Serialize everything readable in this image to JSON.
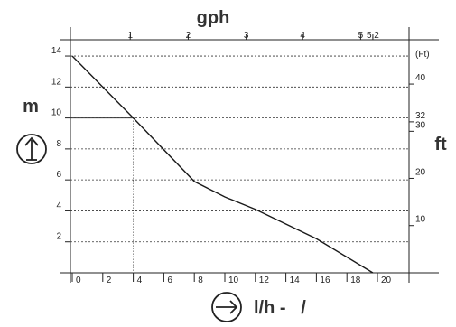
{
  "chart_data": {
    "type": "line",
    "title": "",
    "top_axis_label": "gph",
    "top_ticks": [
      "1",
      "2",
      "3",
      "4",
      "5",
      "5.2"
    ],
    "top_tick_values_lh": [
      3.8,
      7.6,
      11.4,
      15.1,
      18.9,
      19.7
    ],
    "x_label": "l/h -   /",
    "x_ticks": [
      0,
      2,
      4,
      6,
      8,
      10,
      12,
      14,
      16,
      18,
      20
    ],
    "xlim": [
      0,
      22
    ],
    "y_label_left": "m",
    "y_ticks_left": [
      2,
      4,
      6,
      8,
      10,
      12,
      14
    ],
    "ylim": [
      0,
      14
    ],
    "y_label_right": "ft",
    "right_unit_tag": "(Ft)",
    "y_ticks_right": [
      {
        "label": "10",
        "m": 3.05
      },
      {
        "label": "20",
        "m": 6.1
      },
      {
        "label": "30",
        "m": 9.14
      },
      {
        "label": "32",
        "m": 9.75
      },
      {
        "label": "40",
        "m": 12.19
      }
    ],
    "grid_horizontal": true,
    "series": [
      {
        "x": [
          0,
          4,
          8,
          10,
          12,
          16,
          19.7
        ],
        "y": [
          14,
          10,
          5.9,
          4.9,
          4.1,
          2.2,
          0
        ]
      }
    ],
    "reference_point": {
      "x": 4,
      "y": 10
    },
    "colors": {
      "line": "#1a1a1a",
      "grid": "#333333",
      "axis": "#222222"
    }
  },
  "icons": {
    "up_arrow": "up-arrow-circle-icon",
    "right_arrow": "right-arrow-circle-icon"
  }
}
